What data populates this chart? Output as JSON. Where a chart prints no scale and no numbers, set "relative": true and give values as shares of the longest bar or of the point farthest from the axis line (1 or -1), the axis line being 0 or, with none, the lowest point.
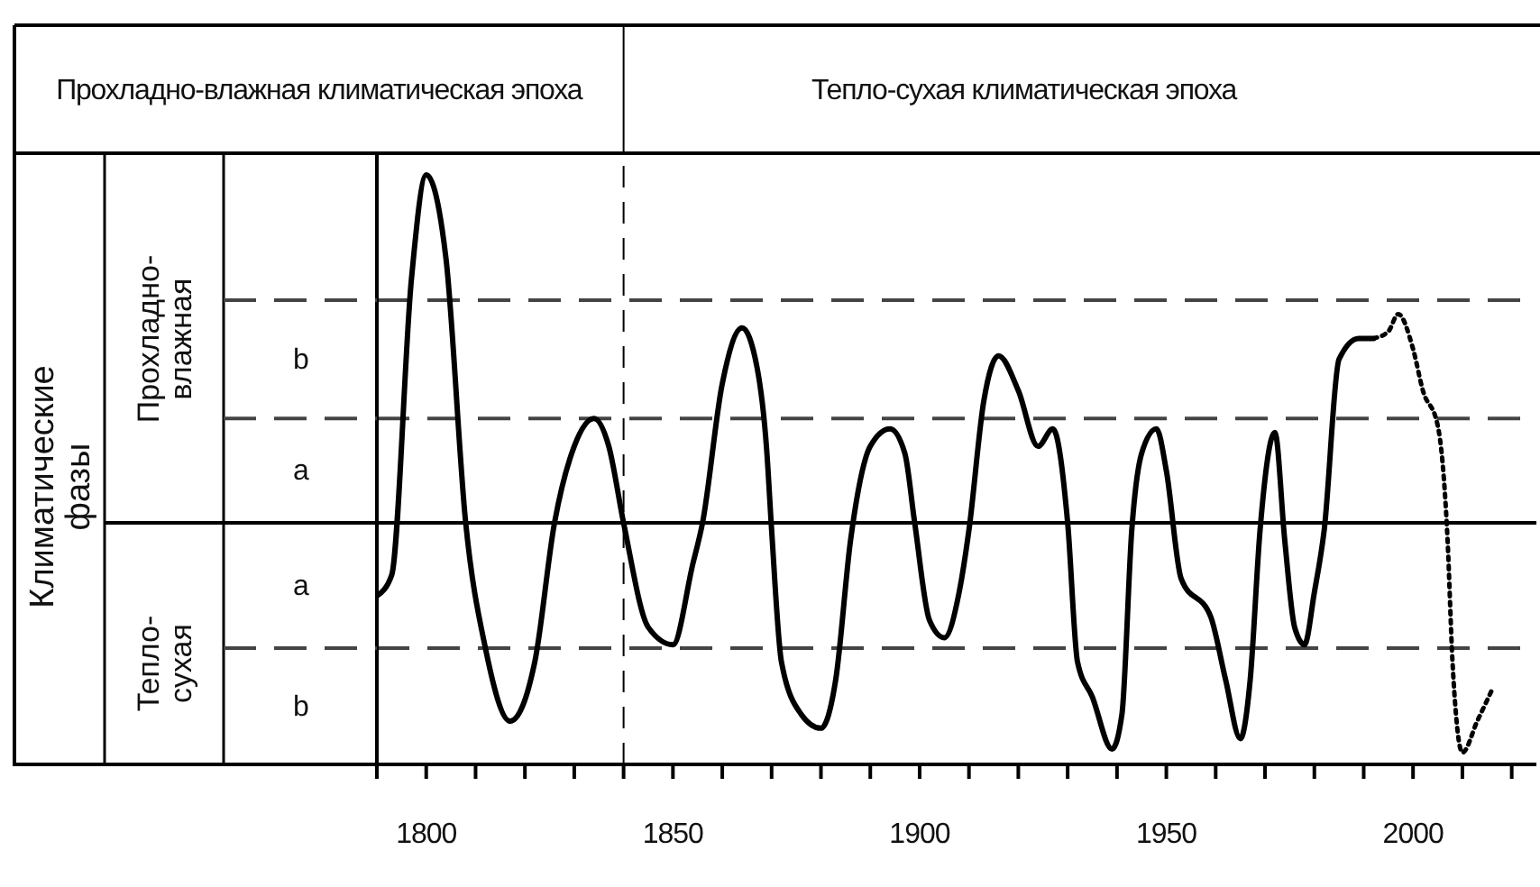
{
  "chart_data": {
    "type": "line",
    "relative": true,
    "annotations": [
      "Прохладно-влажная климатическая эпоха",
      "Тепло-сухая климатическая эпоха",
      "Климатические фазы",
      "Прохладно-влажная",
      "Тепло-сухая",
      "b",
      "a",
      "a",
      "b"
    ],
    "xlim": [
      1790,
      2025
    ],
    "xticks": [
      {
        "value": 1790,
        "label": null
      },
      1800,
      {
        "value": 1810,
        "label": null
      },
      {
        "value": 1820,
        "label": null
      },
      {
        "value": 1830,
        "label": null
      },
      {
        "value": 1840,
        "label": null
      },
      1850,
      {
        "value": 1860,
        "label": null
      },
      {
        "value": 1870,
        "label": null
      },
      {
        "value": 1880,
        "label": null
      },
      {
        "value": 1890,
        "label": null
      },
      1900,
      {
        "value": 1910,
        "label": null
      },
      {
        "value": 1920,
        "label": null
      },
      {
        "value": 1930,
        "label": null
      },
      {
        "value": 1940,
        "label": null
      },
      1950,
      {
        "value": 1960,
        "label": null
      },
      {
        "value": 1970,
        "label": null
      },
      {
        "value": 1980,
        "label": null
      },
      {
        "value": 1990,
        "label": null
      },
      2000,
      {
        "value": 2010,
        "label": null
      },
      {
        "value": 2020,
        "label": null
      }
    ],
    "marker": "none",
    "series": [
      {
        "color": "#000000",
        "line_style": "solid",
        "x": [
          1790,
          1793,
          1797,
          1800,
          1804,
          1808,
          1812,
          1817,
          1822,
          1826,
          1830,
          1834,
          1837,
          1840,
          1845,
          1850,
          1854,
          1856,
          1860,
          1864,
          1867,
          1869,
          1870,
          1872,
          1876,
          1880,
          1883,
          1886,
          1890,
          1894,
          1897,
          1899,
          1902,
          1905,
          1908,
          1910,
          1913,
          1916,
          1920,
          1924,
          1927,
          1930,
          1932,
          1935,
          1939,
          1941,
          1943,
          1945,
          1948,
          1950,
          1953,
          1959,
          1962,
          1965,
          1967,
          1969,
          1972,
          1974,
          1976,
          1978,
          1980,
          1982,
          1985,
          1989,
          1992
        ],
        "values": [
          -0.21,
          -0.15,
          0.7,
          1.0,
          0.76,
          0.0,
          -0.36,
          -0.57,
          -0.4,
          0.0,
          0.22,
          0.3,
          0.22,
          0.0,
          -0.3,
          -0.35,
          -0.12,
          0.0,
          0.4,
          0.56,
          0.45,
          0.21,
          -0.02,
          -0.4,
          -0.55,
          -0.59,
          -0.45,
          -0.05,
          0.22,
          0.27,
          0.2,
          0.0,
          -0.28,
          -0.33,
          -0.2,
          -0.02,
          0.35,
          0.48,
          0.38,
          0.22,
          0.27,
          0.0,
          -0.4,
          -0.5,
          -0.65,
          -0.55,
          -0.02,
          0.2,
          0.27,
          0.15,
          -0.16,
          -0.27,
          -0.45,
          -0.62,
          -0.45,
          -0.02,
          0.26,
          -0.05,
          -0.3,
          -0.35,
          -0.2,
          -0.02,
          0.47,
          0.53,
          0.53
        ]
      },
      {
        "color": "#000000",
        "line_style": "dotted",
        "x": [
          1992,
          1995,
          1997,
          2000,
          2002,
          2005,
          2007,
          2008,
          2010,
          2013,
          2016
        ],
        "values": [
          0.53,
          0.55,
          0.6,
          0.5,
          0.38,
          0.28,
          -0.05,
          -0.4,
          -0.66,
          -0.57,
          -0.48
        ]
      }
    ],
    "ref_lines": [
      {
        "axis": "y",
        "value": 0.64,
        "color": "#444444",
        "line_style": "dashed"
      },
      {
        "axis": "y",
        "value": 0.3,
        "color": "#444444",
        "line_style": "dashed"
      },
      {
        "axis": "y",
        "value": -0.36,
        "color": "#444444",
        "line_style": "dashed"
      },
      {
        "axis": "x",
        "value": 1840,
        "color": "#000000",
        "line_style": "dashed"
      }
    ]
  }
}
